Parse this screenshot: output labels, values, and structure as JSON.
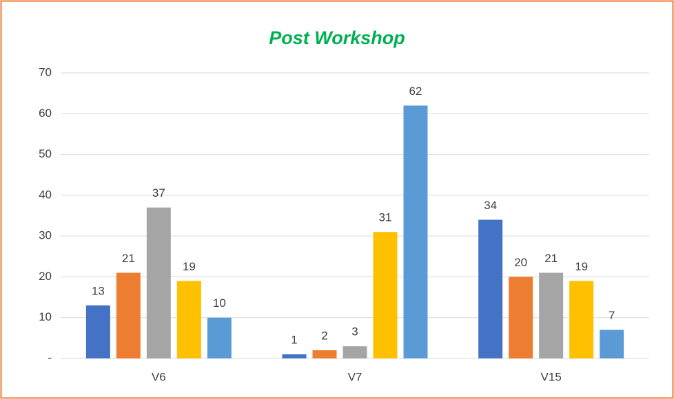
{
  "chart_data": {
    "type": "bar",
    "title": "Post Workshop",
    "categories": [
      "V6",
      "V7",
      "V15"
    ],
    "series": [
      {
        "color": "#4472c4",
        "values": [
          13,
          1,
          34
        ]
      },
      {
        "color": "#ed7d31",
        "values": [
          21,
          2,
          20
        ]
      },
      {
        "color": "#a5a5a5",
        "values": [
          37,
          3,
          21
        ]
      },
      {
        "color": "#ffc000",
        "values": [
          19,
          31,
          19
        ]
      },
      {
        "color": "#5b9bd5",
        "values": [
          10,
          62,
          7
        ]
      }
    ],
    "ylim": [
      0,
      70
    ],
    "yticks": [
      {
        "value": 0,
        "label": "-"
      },
      10,
      20,
      30,
      40,
      50,
      60,
      70
    ],
    "grid": true
  }
}
